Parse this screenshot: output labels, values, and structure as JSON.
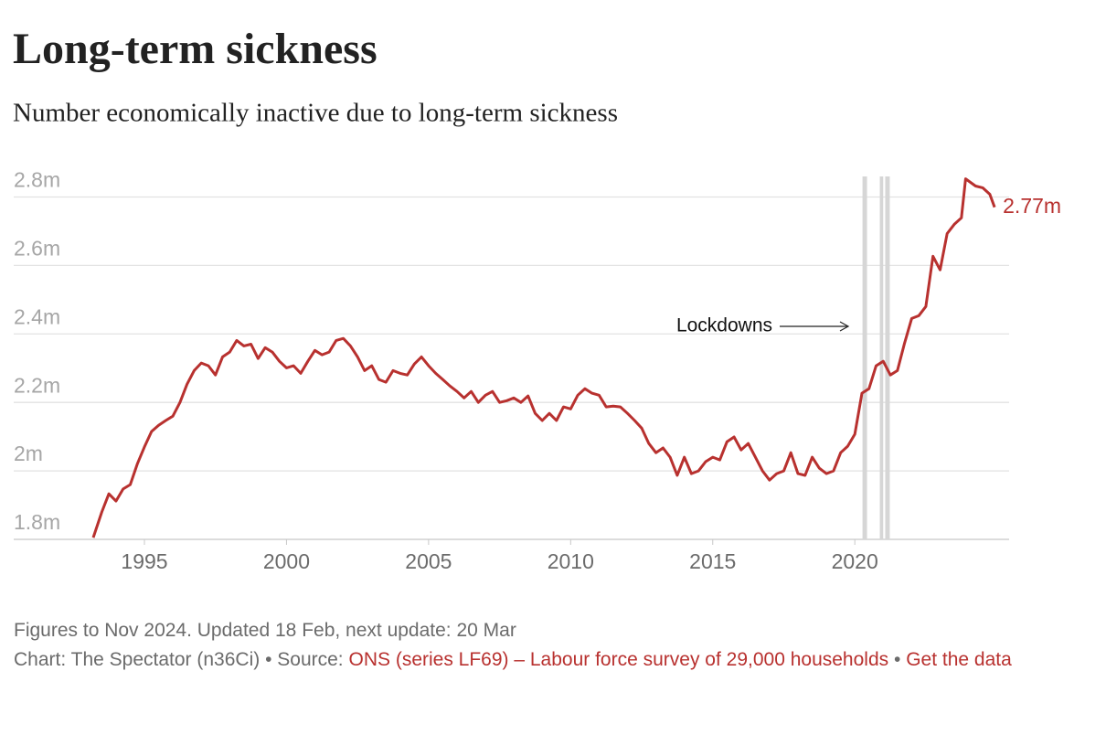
{
  "chart_data": {
    "type": "line",
    "title": "Long-term sickness",
    "subtitle": "Number economically inactive due to long-term sickness",
    "annotation": "Lockdowns",
    "end_label": "2.77m",
    "color": "#b8312f",
    "shaded_periods": [
      [
        2020.27,
        2020.43
      ],
      [
        2020.88,
        2021.0
      ],
      [
        2021.07,
        2021.23
      ]
    ],
    "shade_color": "#d6d6d6",
    "grid": true,
    "xlim": [
      1990.4,
      2025.43
    ],
    "xticks": [
      1995,
      2000,
      2005,
      2010,
      2015,
      2020
    ],
    "ylim": [
      1.8,
      2.86
    ],
    "yticks": [
      {
        "value": 1.8,
        "label": "1.8m"
      },
      {
        "value": 2,
        "label": "2m"
      },
      {
        "value": 2.2,
        "label": "2.2m"
      },
      {
        "value": 2.4,
        "label": "2.4m"
      },
      {
        "value": 2.6,
        "label": "2.6m"
      },
      {
        "value": 2.8,
        "label": "2.8m"
      }
    ],
    "x": [
      1993.2,
      1993.5,
      1993.75,
      1994,
      1994.25,
      1994.5,
      1994.75,
      1995,
      1995.25,
      1995.5,
      1995.75,
      1996,
      1996.25,
      1996.5,
      1996.75,
      1997,
      1997.25,
      1997.5,
      1997.75,
      1998,
      1998.25,
      1998.5,
      1998.75,
      1999,
      1999.25,
      1999.5,
      1999.75,
      2000,
      2000.25,
      2000.5,
      2000.75,
      2001,
      2001.25,
      2001.5,
      2001.75,
      2002,
      2002.25,
      2002.5,
      2002.75,
      2003,
      2003.25,
      2003.5,
      2003.75,
      2004,
      2004.25,
      2004.5,
      2004.75,
      2005,
      2005.25,
      2005.5,
      2005.75,
      2006,
      2006.25,
      2006.5,
      2006.75,
      2007,
      2007.25,
      2007.5,
      2007.75,
      2008,
      2008.25,
      2008.5,
      2008.75,
      2009,
      2009.25,
      2009.5,
      2009.75,
      2010,
      2010.25,
      2010.5,
      2010.75,
      2011,
      2011.25,
      2011.5,
      2011.75,
      2012,
      2012.25,
      2012.5,
      2012.75,
      2013,
      2013.25,
      2013.5,
      2013.75,
      2014,
      2014.25,
      2014.5,
      2014.75,
      2015,
      2015.25,
      2015.5,
      2015.75,
      2016,
      2016.25,
      2016.5,
      2016.75,
      2017,
      2017.25,
      2017.5,
      2017.75,
      2018,
      2018.25,
      2018.5,
      2018.75,
      2019,
      2019.25,
      2019.5,
      2019.75,
      2020,
      2020.25,
      2020.5,
      2020.75,
      2021,
      2021.25,
      2021.5,
      2021.75,
      2022,
      2022.25,
      2022.5,
      2022.75,
      2023,
      2023.25,
      2023.5,
      2023.75,
      2023.9,
      2024.25,
      2024.5,
      2024.75,
      2024.92
    ],
    "values": [
      1.805,
      1.88,
      1.933,
      1.912,
      1.947,
      1.96,
      2.02,
      2.07,
      2.115,
      2.133,
      2.147,
      2.16,
      2.2,
      2.253,
      2.293,
      2.315,
      2.307,
      2.28,
      2.333,
      2.347,
      2.381,
      2.365,
      2.37,
      2.328,
      2.36,
      2.347,
      2.32,
      2.301,
      2.307,
      2.285,
      2.32,
      2.352,
      2.339,
      2.347,
      2.381,
      2.387,
      2.365,
      2.333,
      2.293,
      2.307,
      2.267,
      2.259,
      2.293,
      2.285,
      2.28,
      2.312,
      2.333,
      2.307,
      2.285,
      2.267,
      2.248,
      2.232,
      2.213,
      2.232,
      2.2,
      2.221,
      2.232,
      2.2,
      2.205,
      2.213,
      2.2,
      2.219,
      2.168,
      2.147,
      2.168,
      2.147,
      2.187,
      2.181,
      2.221,
      2.24,
      2.227,
      2.221,
      2.187,
      2.189,
      2.187,
      2.168,
      2.147,
      2.125,
      2.08,
      2.053,
      2.067,
      2.04,
      1.987,
      2.04,
      1.992,
      2.0,
      2.027,
      2.04,
      2.032,
      2.085,
      2.099,
      2.061,
      2.08,
      2.04,
      2.0,
      1.973,
      1.992,
      2.0,
      2.053,
      1.992,
      1.987,
      2.04,
      2.008,
      1.992,
      2.0,
      2.053,
      2.072,
      2.107,
      2.227,
      2.24,
      2.307,
      2.32,
      2.28,
      2.293,
      2.373,
      2.445,
      2.453,
      2.48,
      2.627,
      2.587,
      2.693,
      2.72,
      2.739,
      2.853,
      2.832,
      2.827,
      2.808,
      2.77
    ]
  },
  "footer": {
    "note": "Figures to Nov 2024. Updated 18 Feb, next update: 20 Mar",
    "credit": "Chart: The Spectator (n36Ci) • Source:",
    "source_link": "ONS (series LF69) – Labour force survey of 29,000 households",
    "separator": "•",
    "data_link": "Get the data"
  }
}
